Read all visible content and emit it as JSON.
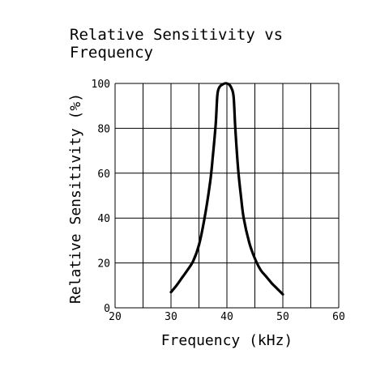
{
  "chart_data": {
    "type": "line",
    "title_lines": [
      "Relative Sensitivity vs",
      "Frequency"
    ],
    "xlabel": "Frequency (kHz)",
    "ylabel": "Relative Sensitivity (%)",
    "xlim": [
      20,
      60
    ],
    "ylim": [
      0,
      100
    ],
    "x_ticks": [
      "20",
      "30",
      "40",
      "50",
      "60"
    ],
    "y_ticks": [
      "0",
      "20",
      "40",
      "60",
      "80",
      "100"
    ],
    "x_grid": [
      20,
      25,
      30,
      35,
      40,
      45,
      50,
      55,
      60
    ],
    "y_grid": [
      0,
      20,
      40,
      60,
      80,
      100
    ],
    "grid": true,
    "series": [
      {
        "x": [
          30,
          31,
          32,
          33,
          34,
          35,
          36,
          37,
          37.5,
          38,
          38.3,
          38.7,
          39.2,
          39.6,
          40,
          40.4,
          40.8,
          41.2,
          41.5,
          42,
          42.5,
          43,
          44,
          45,
          46,
          47,
          48,
          49,
          50
        ],
        "y": [
          7,
          10,
          13.5,
          17,
          21,
          28,
          40,
          56,
          68,
          82,
          95,
          98.5,
          99.5,
          100,
          100,
          99.5,
          98,
          94,
          80,
          62,
          50,
          40,
          29,
          22,
          17,
          14,
          11,
          8.5,
          6
        ]
      }
    ]
  }
}
